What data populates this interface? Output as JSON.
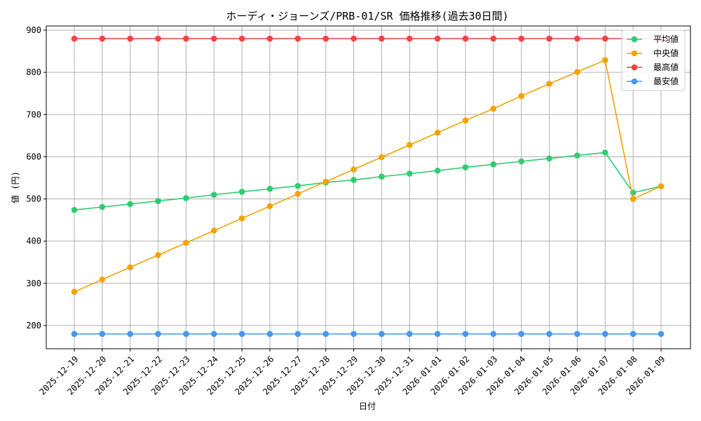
{
  "chart_data": {
    "type": "line",
    "title": "ホーディ・ジョーンズ/PRB-01/SR 価格推移(過去30日間)",
    "xlabel": "日付",
    "ylabel": "値 (円)",
    "ylim": [
      145,
      910
    ],
    "yticks": [
      200,
      300,
      400,
      500,
      600,
      700,
      800,
      900
    ],
    "grid": true,
    "legend_position": "top-right",
    "categories": [
      "2025-12-19",
      "2025-12-20",
      "2025-12-21",
      "2025-12-22",
      "2025-12-23",
      "2025-12-24",
      "2025-12-25",
      "2025-12-26",
      "2025-12-27",
      "2025-12-28",
      "2025-12-29",
      "2025-12-30",
      "2025-12-31",
      "2026-01-01",
      "2026-01-02",
      "2026-01-03",
      "2026-01-04",
      "2026-01-05",
      "2026-01-06",
      "2026-01-07",
      "2026-01-08",
      "2026-01-09"
    ],
    "series": [
      {
        "name": "平均値",
        "color": "#2ecc71",
        "values": [
          474,
          481,
          488,
          495,
          502,
          510,
          517,
          524,
          531,
          539,
          545,
          553,
          560,
          567,
          575,
          582,
          589,
          596,
          603,
          610,
          515,
          530
        ]
      },
      {
        "name": "中央値",
        "color": "#f5a300",
        "values": [
          280,
          309,
          338,
          367,
          396,
          425,
          454,
          483,
          512,
          541,
          570,
          599,
          628,
          657,
          686,
          714,
          744,
          773,
          801,
          829,
          500,
          530
        ]
      },
      {
        "name": "最高値",
        "color": "#ee4444",
        "values": [
          880,
          880,
          880,
          880,
          880,
          880,
          880,
          880,
          880,
          880,
          880,
          880,
          880,
          880,
          880,
          880,
          880,
          880,
          880,
          880,
          880,
          880
        ]
      },
      {
        "name": "最安値",
        "color": "#4499ee",
        "values": [
          180,
          180,
          180,
          180,
          180,
          180,
          180,
          180,
          180,
          180,
          180,
          180,
          180,
          180,
          180,
          180,
          180,
          180,
          180,
          180,
          180,
          180
        ]
      }
    ]
  }
}
